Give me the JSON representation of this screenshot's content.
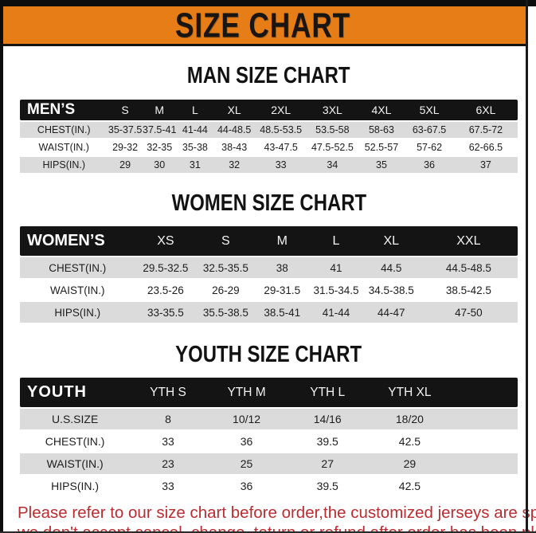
{
  "banner": {
    "title": "SIZE CHART"
  },
  "sections": [
    {
      "heading": "MAN SIZE CHART",
      "table": {
        "header": [
          "MEN’S",
          "S",
          "M",
          "L",
          "XL",
          "2XL",
          "3XL",
          "4XL",
          "5XL",
          "6XL"
        ],
        "rows": [
          [
            "CHEST(IN.)",
            "35-37.5",
            "37.5-41",
            "41-44",
            "44-48.5",
            "48.5-53.5",
            "53.5-58",
            "58-63",
            "63-67.5",
            "67.5-72"
          ],
          [
            "WAIST(IN.)",
            "29-32",
            "32-35",
            "35-38",
            "38-43",
            "43-47.5",
            "47.5-52.5",
            "52.5-57",
            "57-62",
            "62-66.5"
          ],
          [
            "HIPS(IN.)",
            "29",
            "30",
            "31",
            "32",
            "33",
            "34",
            "35",
            "36",
            "37"
          ]
        ]
      }
    },
    {
      "heading": "WOMEN SIZE CHART",
      "table": {
        "header": [
          "WOMEN’S",
          "XS",
          "S",
          "M",
          "L",
          "XL",
          "XXL"
        ],
        "rows": [
          [
            "CHEST(IN.)",
            "29.5-32.5",
            "32.5-35.5",
            "38",
            "41",
            "44.5",
            "44.5-48.5"
          ],
          [
            "WAIST(IN.)",
            "23.5-26",
            "26-29",
            "29-31.5",
            "31.5-34.5",
            "34.5-38.5",
            "38.5-42.5"
          ],
          [
            "HIPS(IN.)",
            "33-35.5",
            "35.5-38.5",
            "38.5-41",
            "41-44",
            "44-47",
            "47-50"
          ]
        ]
      }
    },
    {
      "heading": "YOUTH SIZE CHART",
      "table": {
        "header": [
          "YOUTH",
          "YTH S",
          "YTH M",
          "YTH L",
          "YTH XL",
          ""
        ],
        "rows": [
          [
            "U.S.SIZE",
            "8",
            "10/12",
            "14/16",
            "18/20",
            ""
          ],
          [
            "CHEST(IN.)",
            "33",
            "36",
            "39.5",
            "42.5",
            ""
          ],
          [
            "WAIST(IN.)",
            "23",
            "25",
            "27",
            "29",
            ""
          ],
          [
            "HIPS(IN.)",
            "33",
            "36",
            "39.5",
            "42.5",
            ""
          ]
        ]
      }
    }
  ],
  "footer": {
    "line1": "Please refer to our size chart before order,the customized jerseys are special products,",
    "line2": "we don't accept cancel, change, teturn or refund after order has been placed!"
  },
  "colors": {
    "orange": "#E67D17",
    "header_black": "#141414",
    "row_gray": "#DBDBDB",
    "footer_red": "#BA2C30"
  }
}
